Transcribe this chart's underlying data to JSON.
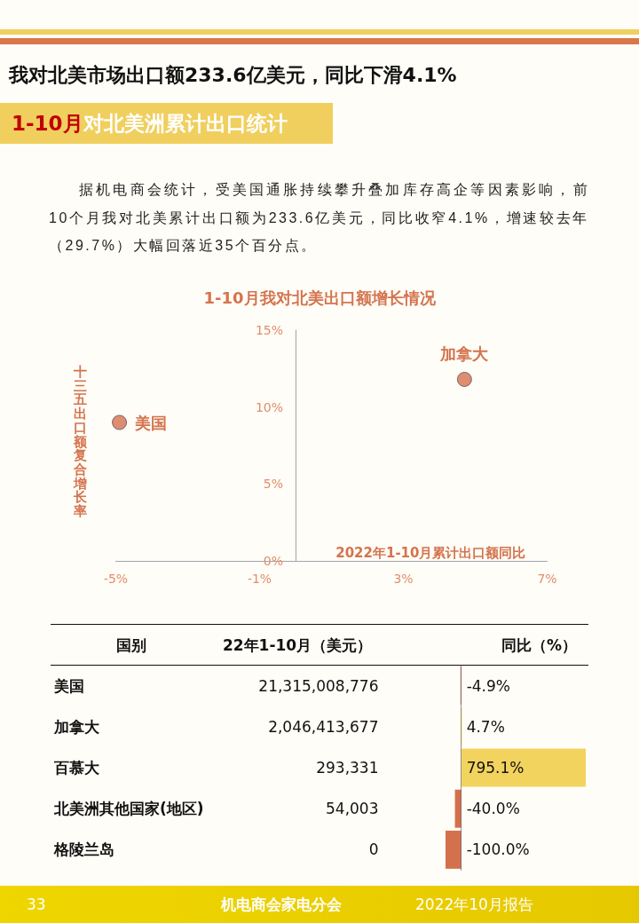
{
  "chart_data": [
    {
      "type": "other",
      "title": "我对北美市场出口额233.6亿美元，同比下滑4.1%",
      "subtitle": "1-10月对北美洲累计出口统计",
      "annotations": [
        "据机电商会统计，受美国通胀持续攀升叠加库存高企等因素影响，前10个月我对北美累计出口额为233.6亿美元，同比收窄4.1%，增速较去年（29.7%）大幅回落近35个百分点。",
        "33",
        "机电商会家电分会",
        "2022年10月报告"
      ]
    },
    {
      "type": "scatter",
      "title": "1-10月我对北美出口额增长情况",
      "xlabel": "2022年1-10月累计出口额同比",
      "ylabel": "十三五出口额复合增长率",
      "x": [
        -4.9,
        4.7
      ],
      "values": [
        9.0,
        11.8
      ],
      "color": "#d4714d",
      "marker": "circle",
      "grid": false,
      "xlim": [
        -5,
        7
      ],
      "xticks": [
        {
          "value": -5,
          "label": "-5%"
        },
        {
          "value": -1,
          "label": "-1%"
        },
        {
          "value": 3,
          "label": "3%"
        },
        {
          "value": 7,
          "label": "7%"
        }
      ],
      "ylim": [
        0,
        15
      ],
      "yticks": [
        {
          "value": 0,
          "label": "0%"
        },
        {
          "value": 5,
          "label": "5%"
        },
        {
          "value": 10,
          "label": "10%"
        },
        {
          "value": 15,
          "label": "15%"
        }
      ],
      "annotations": [
        {
          "text": "美国",
          "x": -4.9,
          "y": 9.0
        },
        {
          "text": "加拿大",
          "x": 4.7,
          "y": 11.8
        }
      ]
    },
    {
      "type": "bar",
      "orientation": "horizontal",
      "xlabel": "同比（%）",
      "ylabel": "国别",
      "categories": [
        "美国",
        "加拿大",
        "百慕大",
        "北美洲其他国家(地区)",
        "格陵兰岛"
      ],
      "values": [
        -4.9,
        4.7,
        795.1,
        -40.0,
        -100.0
      ],
      "colors": [
        "#d4714d",
        "#f2d35e",
        "#f2d35e",
        "#d4714d",
        "#d4714d"
      ],
      "value_labels": [
        "-4.9%",
        "4.7%",
        "795.1%",
        "-40.0%",
        "-100.0%"
      ],
      "tick_labels": "y",
      "ref_lines": [
        {
          "axis": "x",
          "value": 0,
          "line_style": "dotted",
          "color": "#333333"
        }
      ],
      "annotations": [
        "22年1-10月（美元）",
        "21,315,008,776",
        "2,046,413,677",
        "293,331",
        "54,003",
        "0"
      ]
    }
  ]
}
